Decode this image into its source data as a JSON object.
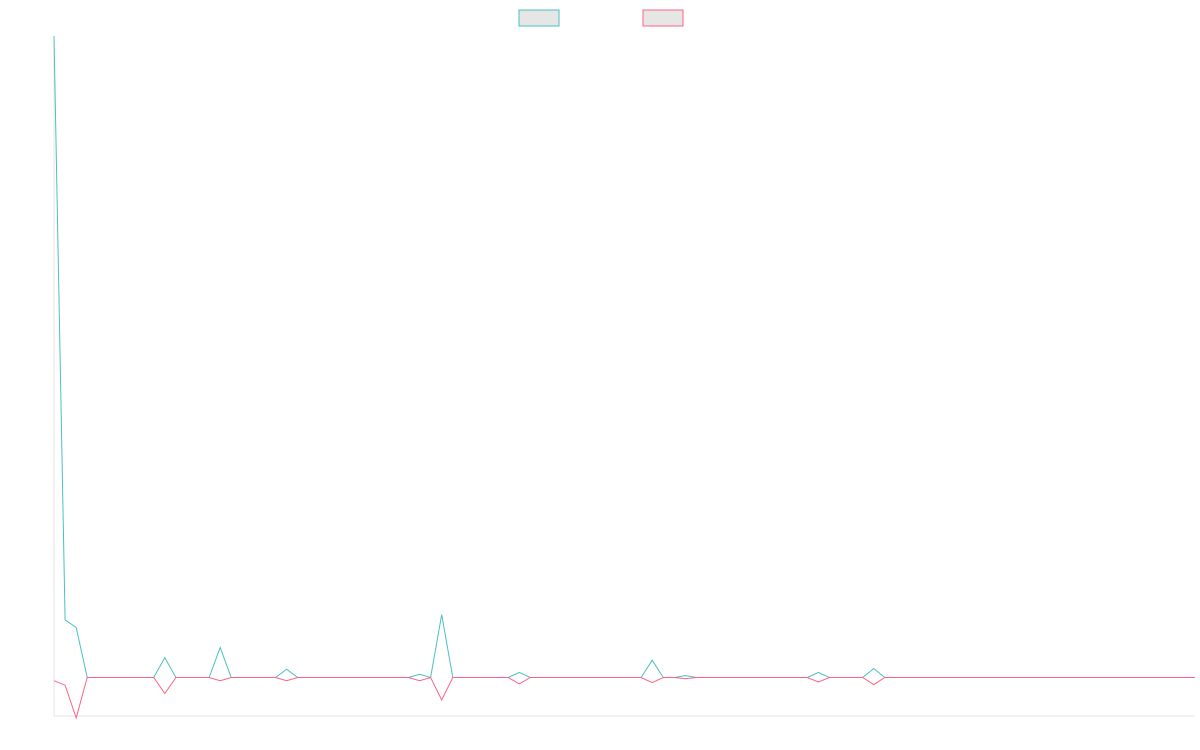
{
  "chart_data": {
    "type": "line",
    "grid": false,
    "legend_position": "top-center",
    "legend_entries": [
      {
        "series_index": 0,
        "label": ""
      },
      {
        "series_index": 1,
        "label": ""
      }
    ],
    "x": [
      0,
      1,
      2,
      3,
      4,
      5,
      6,
      7,
      8,
      9,
      10,
      11,
      12,
      13,
      14,
      15,
      16,
      17,
      18,
      19,
      20,
      21,
      22,
      23,
      24,
      25,
      26,
      27,
      28,
      29,
      30,
      31,
      32,
      33,
      34,
      35,
      36,
      37,
      38,
      39,
      40,
      41,
      42,
      43,
      44,
      45,
      46,
      47,
      48,
      49,
      50,
      51,
      52,
      53,
      54,
      55,
      56,
      57,
      58,
      59,
      60,
      61,
      62,
      63,
      64,
      65,
      66,
      67,
      68,
      69,
      70,
      71,
      72,
      73,
      74,
      75,
      76,
      77,
      78,
      79,
      80,
      81,
      82,
      83,
      84,
      85,
      86,
      87,
      88,
      89,
      90,
      91,
      92,
      93,
      94,
      95,
      96,
      97,
      98,
      99,
      100,
      101,
      102,
      103
    ],
    "ylim": [
      -0.06,
      1.0
    ],
    "series": [
      {
        "color": "#4bc0c0",
        "fill": "#e6e6e6",
        "values": [
          1.0,
          0.09,
          0.078,
          0,
          0,
          0,
          0,
          0,
          0,
          0,
          0.031,
          0,
          0,
          0,
          0,
          0.047,
          0,
          0,
          0,
          0,
          0,
          0.013,
          0,
          0,
          0,
          0,
          0,
          0,
          0,
          0,
          0,
          0,
          0,
          0.005,
          0,
          0.098,
          0,
          0,
          0,
          0,
          0,
          0,
          0.008,
          0,
          0,
          0,
          0,
          0,
          0,
          0,
          0,
          0,
          0,
          0,
          0.027,
          0,
          0,
          0.003,
          0,
          0,
          0,
          0,
          0,
          0,
          0,
          0,
          0,
          0,
          0,
          0.008,
          0,
          0,
          0,
          0,
          0.014,
          0,
          0,
          0,
          0,
          0,
          0,
          0,
          0,
          0,
          0,
          0,
          0,
          0,
          0,
          0,
          0,
          0,
          0,
          0,
          0,
          0,
          0,
          0,
          0,
          0,
          0,
          0,
          0,
          0
        ]
      },
      {
        "color": "#ff6384",
        "fill": "#e6e6e6",
        "values": [
          -0.005,
          -0.012,
          -0.063,
          0,
          0,
          0,
          0,
          0,
          0,
          0,
          -0.025,
          0,
          0,
          0,
          0,
          -0.005,
          0,
          0,
          0,
          0,
          0,
          -0.005,
          0,
          0,
          0,
          0,
          0,
          0,
          0,
          0,
          0,
          0,
          0,
          -0.005,
          0,
          -0.035,
          0,
          0,
          0,
          0,
          0,
          0,
          -0.01,
          0,
          0,
          0,
          0,
          0,
          0,
          0,
          0,
          0,
          0,
          0,
          -0.008,
          0,
          0,
          -0.002,
          0,
          0,
          0,
          0,
          0,
          0,
          0,
          0,
          0,
          0,
          0,
          -0.007,
          0,
          0,
          0,
          0,
          -0.011,
          0,
          0,
          0,
          0,
          0,
          0,
          0,
          0,
          0,
          0,
          0,
          0,
          0,
          0,
          0,
          0,
          0,
          0,
          0,
          0,
          0,
          0,
          0,
          0,
          0,
          0,
          0,
          0,
          0
        ]
      }
    ]
  }
}
